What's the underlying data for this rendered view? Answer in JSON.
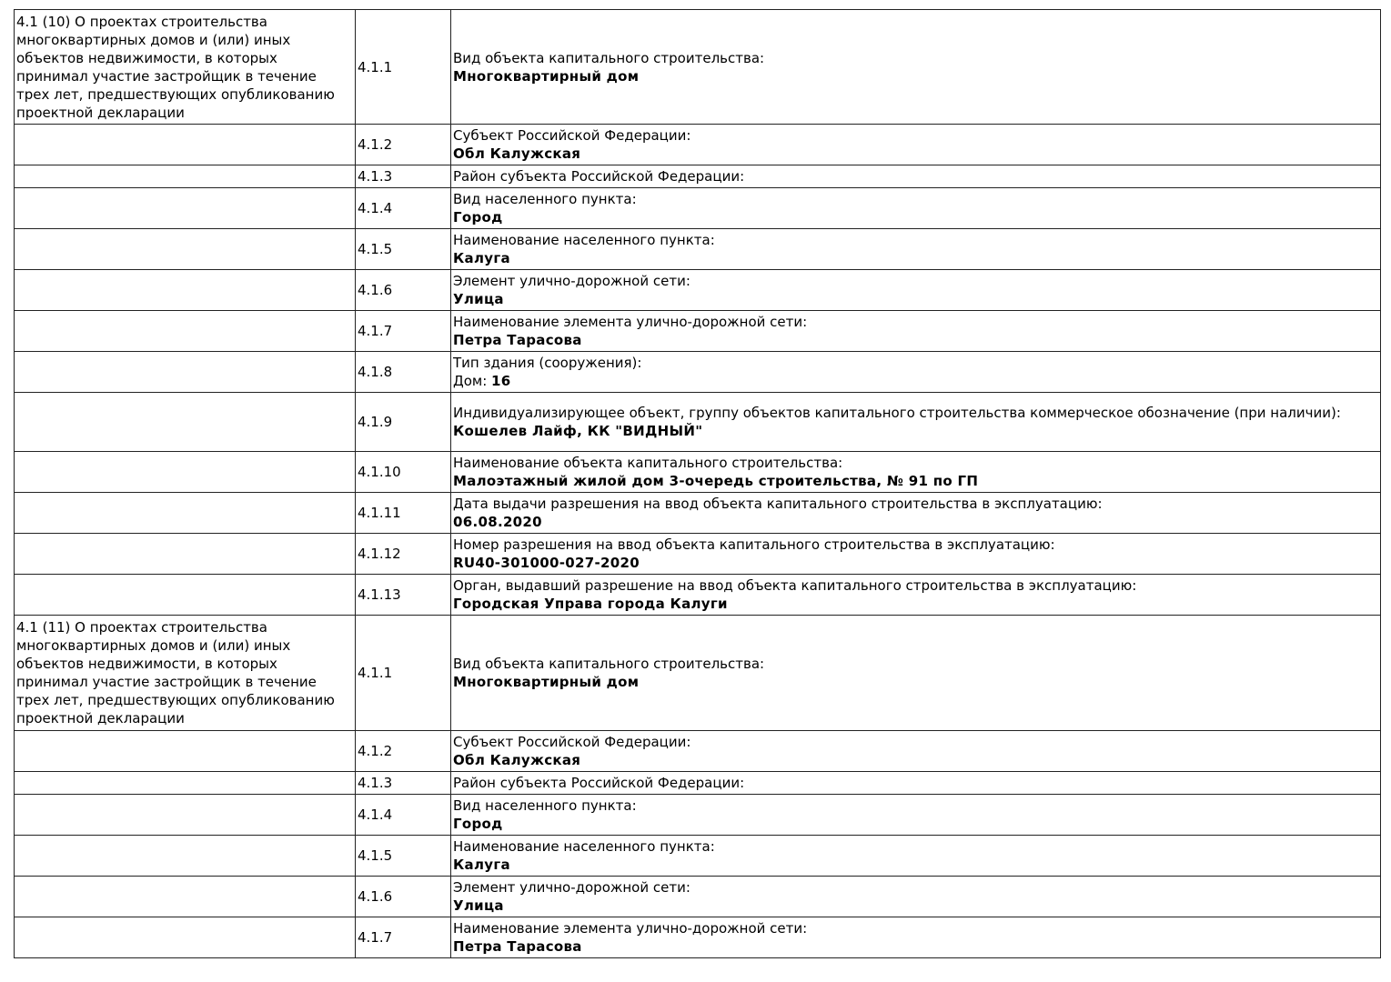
{
  "sections": [
    {
      "title": "4.1 (10) О проектах строительства многоквартирных домов и (или) иных объектов недвижимости, в которых принимал участие застройщик в течение трех лет, предшествующих опубликованию проектной декларации",
      "rows": [
        {
          "num": "4.1.1",
          "label": "Вид объекта капитального строительства:",
          "value": "Многоквартирный дом"
        },
        {
          "num": "4.1.2",
          "label": "Субъект Российской Федерации:",
          "value": "Обл Калужская"
        },
        {
          "num": "4.1.3",
          "label": "Район субъекта Российской Федерации:",
          "value": ""
        },
        {
          "num": "4.1.4",
          "label": "Вид населенного пункта:",
          "value": "Город"
        },
        {
          "num": "4.1.5",
          "label": "Наименование населенного пункта:",
          "value": "Калуга"
        },
        {
          "num": "4.1.6",
          "label": "Элемент улично-дорожной сети:",
          "value": "Улица"
        },
        {
          "num": "4.1.7",
          "label": "Наименование элемента улично-дорожной сети:",
          "value": "Петра Тарасова"
        },
        {
          "num": "4.1.8",
          "label": "Тип здания (сооружения):",
          "value_prefix": "Дом: ",
          "value": "16"
        },
        {
          "num": "4.1.9",
          "label": "Индивидуализирующее объект, группу объектов капитального строительства коммерческое обозначение (при наличии):",
          "value": "Кошелев Лайф, КК \"ВИДНЫЙ\""
        },
        {
          "num": "4.1.10",
          "label": "Наименование объекта капитального строительства:",
          "value": "Малоэтажный жилой дом 3-очередь строительства, № 91 по ГП"
        },
        {
          "num": "4.1.11",
          "label": "Дата выдачи разрешения на ввод объекта капитального строительства в эксплуатацию:",
          "value": "06.08.2020"
        },
        {
          "num": "4.1.12",
          "label": "Номер разрешения на ввод объекта капитального строительства в эксплуатацию:",
          "value": "RU40-301000-027-2020"
        },
        {
          "num": "4.1.13",
          "label": "Орган, выдавший разрешение на ввод объекта капитального строительства в эксплуатацию:",
          "value": "Городская Управа города Калуги"
        }
      ]
    },
    {
      "title": "4.1 (11) О проектах строительства многоквартирных домов и (или) иных объектов недвижимости, в которых принимал участие застройщик в течение трех лет, предшествующих опубликованию проектной декларации",
      "rows": [
        {
          "num": "4.1.1",
          "label": "Вид объекта капитального строительства:",
          "value": "Многоквартирный дом"
        },
        {
          "num": "4.1.2",
          "label": "Субъект Российской Федерации:",
          "value": "Обл Калужская"
        },
        {
          "num": "4.1.3",
          "label": "Район субъекта Российской Федерации:",
          "value": ""
        },
        {
          "num": "4.1.4",
          "label": "Вид населенного пункта:",
          "value": "Город"
        },
        {
          "num": "4.1.5",
          "label": "Наименование населенного пункта:",
          "value": "Калуга"
        },
        {
          "num": "4.1.6",
          "label": "Элемент улично-дорожной сети:",
          "value": "Улица"
        },
        {
          "num": "4.1.7",
          "label": "Наименование элемента улично-дорожной сети:",
          "value": "Петра Тарасова"
        }
      ]
    }
  ]
}
